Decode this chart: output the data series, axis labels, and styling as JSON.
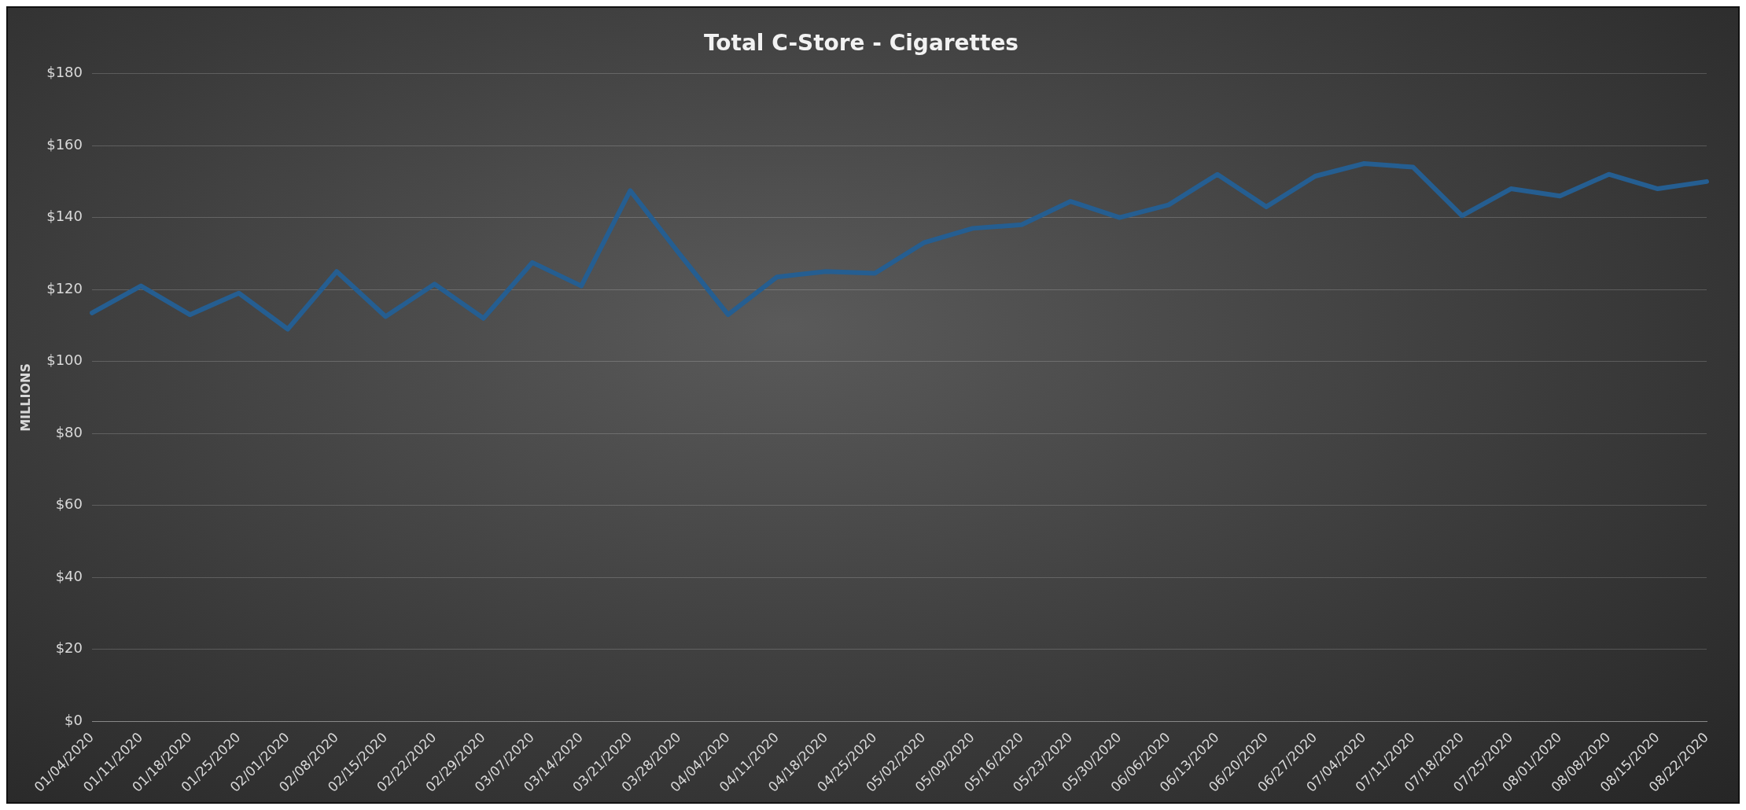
{
  "chart_data": {
    "type": "line",
    "title": "Total C-Store - Cigarettes",
    "ylabel": "MILLIONS",
    "categories": [
      "01/04/2020",
      "01/11/2020",
      "01/18/2020",
      "01/25/2020",
      "02/01/2020",
      "02/08/2020",
      "02/15/2020",
      "02/22/2020",
      "02/29/2020",
      "03/07/2020",
      "03/14/2020",
      "03/21/2020",
      "03/28/2020",
      "04/04/2020",
      "04/11/2020",
      "04/18/2020",
      "04/25/2020",
      "05/02/2020",
      "05/09/2020",
      "05/16/2020",
      "05/23/2020",
      "05/30/2020",
      "06/06/2020",
      "06/13/2020",
      "06/20/2020",
      "06/27/2020",
      "07/04/2020",
      "07/11/2020",
      "07/18/2020",
      "07/25/2020",
      "08/01/2020",
      "08/08/2020",
      "08/15/2020",
      "08/22/2020"
    ],
    "series": [
      {
        "color": "#255e91",
        "values": [
          113.5,
          121,
          113,
          119,
          109,
          125,
          112.5,
          121.5,
          112,
          127.5,
          121,
          147.5,
          130,
          113,
          123.5,
          125,
          124.5,
          133,
          137,
          138,
          144.5,
          140,
          143.5,
          152,
          143,
          151.5,
          155,
          154,
          140.5,
          148,
          146,
          152,
          148,
          150
        ]
      }
    ],
    "ylim": [
      0,
      180
    ],
    "yticks": [
      {
        "value": 0,
        "label": "$0"
      },
      {
        "value": 20,
        "label": "$20"
      },
      {
        "value": 40,
        "label": "$40"
      },
      {
        "value": 60,
        "label": "$60"
      },
      {
        "value": 80,
        "label": "$80"
      },
      {
        "value": 100,
        "label": "$100"
      },
      {
        "value": 120,
        "label": "$120"
      },
      {
        "value": 140,
        "label": "$140"
      },
      {
        "value": 160,
        "label": "$160"
      },
      {
        "value": 180,
        "label": "$180"
      }
    ],
    "grid": "y",
    "legend": false,
    "marker": "none",
    "line_style": "solid"
  }
}
